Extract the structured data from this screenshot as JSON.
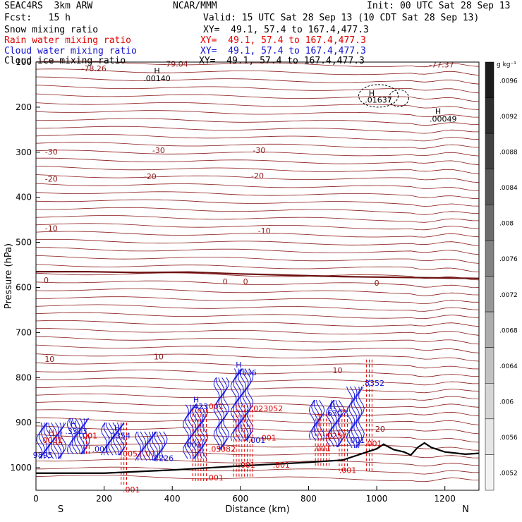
{
  "header": {
    "model": "SEAC4RS  3km ARW",
    "org": "NCAR/MMM",
    "init": "Init: 00 UTC Sat 28 Sep 13",
    "fcst": "Fcst:   15 h",
    "valid": "Valid: 15 UTC Sat 28 Sep 13 (10 CDT Sat 28 Sep 13)"
  },
  "fields": [
    {
      "name": "Snow mixing ratio",
      "xy": "XY=  49.1, 57.4 to 167.4,477.3",
      "color": "#000000"
    },
    {
      "name": "Rain water mixing ratio",
      "xy": "XY=  49.1, 57.4 to 167.4,477.3",
      "color": "#e00000"
    },
    {
      "name": "Cloud water mixing ratio",
      "xy": "XY=  49.1, 57.4 to 167.4,477.3",
      "color": "#1010d0"
    },
    {
      "name": "Cloud ice mixing ratio",
      "xy": "XY=  49.1, 57.4 to 167.4,477.3",
      "color": "#000000"
    }
  ],
  "chart_data": {
    "type": "contour",
    "xlabel": "Distance (km)",
    "ylabel": "Pressure (hPa)",
    "xlim": [
      0,
      1300
    ],
    "ylim": [
      1050,
      100
    ],
    "x_ticks": [
      0,
      200,
      400,
      600,
      800,
      1000,
      1200
    ],
    "y_ticks": [
      100,
      200,
      300,
      400,
      500,
      600,
      700,
      800,
      900,
      1000
    ],
    "y_tick_labels": [
      "100",
      "200",
      "300",
      "400",
      "500",
      "600",
      "700",
      "800",
      "900",
      "1000"
    ],
    "x_end_labels": {
      "left": "S",
      "right": "N"
    },
    "colorbar": {
      "unit": "g kg⁻¹",
      "levels": [
        ".0096",
        ".0092",
        ".0088",
        ".0084",
        ".008",
        ".0076",
        ".0072",
        ".0068",
        ".0064",
        ".006",
        ".0056",
        ".0052"
      ],
      "colors": [
        "#1c1c1c",
        "#2e2e2e",
        "#424242",
        "#575757",
        "#6c6c6c",
        "#828282",
        "#979797",
        "#acacac",
        "#c1c1c1",
        "#d5d5d5",
        "#e6e6e6",
        "#f3f3f3"
      ]
    },
    "temperature_contours": {
      "color": "#8b1a1a",
      "zero_line_p": [
        565,
        565,
        567,
        566,
        570,
        573,
        576,
        578,
        580
      ],
      "zero_line_x": [
        0,
        150,
        300,
        450,
        600,
        750,
        900,
        1100,
        1300
      ],
      "labels": [
        {
          "x": 170,
          "p": 120,
          "text": "-78.26"
        },
        {
          "x": 410,
          "p": 110,
          "text": "-79.04"
        },
        {
          "x": 1190,
          "p": 112,
          "text": "-77.37"
        },
        {
          "x": 45,
          "p": 305,
          "text": "-30"
        },
        {
          "x": 360,
          "p": 302,
          "text": "-30"
        },
        {
          "x": 655,
          "p": 302,
          "text": "-30"
        },
        {
          "x": 45,
          "p": 365,
          "text": "-20"
        },
        {
          "x": 335,
          "p": 360,
          "text": "-20"
        },
        {
          "x": 650,
          "p": 358,
          "text": "-20"
        },
        {
          "x": 45,
          "p": 475,
          "text": "-10"
        },
        {
          "x": 670,
          "p": 480,
          "text": "-10"
        },
        {
          "x": 30,
          "p": 590,
          "text": "0"
        },
        {
          "x": 555,
          "p": 593,
          "text": "0"
        },
        {
          "x": 615,
          "p": 593,
          "text": "0"
        },
        {
          "x": 1000,
          "p": 596,
          "text": "0"
        },
        {
          "x": 40,
          "p": 765,
          "text": "10"
        },
        {
          "x": 360,
          "p": 760,
          "text": "10"
        },
        {
          "x": 885,
          "p": 790,
          "text": "10"
        },
        {
          "x": 1010,
          "p": 920,
          "text": "20"
        }
      ]
    },
    "extrema_labels": [
      {
        "x": 355,
        "p": 125,
        "text": "H",
        "color": "#000000"
      },
      {
        "x": 355,
        "p": 142,
        "text": ".00140",
        "color": "#000000"
      },
      {
        "x": 985,
        "p": 175,
        "text": "H",
        "color": "#000000"
      },
      {
        "x": 1005,
        "p": 190,
        "text": ".01637",
        "color": "#000000"
      },
      {
        "x": 1180,
        "p": 215,
        "text": "H",
        "color": "#000000"
      },
      {
        "x": 1195,
        "p": 232,
        "text": ".00049",
        "color": "#000000"
      },
      {
        "x": 45,
        "p": 928,
        "text": "H",
        "color": "#e00000"
      },
      {
        "x": 45,
        "p": 945,
        "text": ".0001",
        "color": "#e00000"
      },
      {
        "x": 155,
        "p": 935,
        "text": ".001",
        "color": "#e00000"
      },
      {
        "x": 280,
        "p": 975,
        "text": ".0051",
        "color": "#e00000"
      },
      {
        "x": 333,
        "p": 975,
        "text": ".01",
        "color": "#e00000"
      },
      {
        "x": 280,
        "p": 1055,
        "text": ".001",
        "color": "#e00000"
      },
      {
        "x": 525,
        "p": 870,
        "text": ".001",
        "color": "#e00000"
      },
      {
        "x": 525,
        "p": 965,
        "text": ".05",
        "color": "#e00000"
      },
      {
        "x": 557,
        "p": 965,
        "text": "3082",
        "color": "#e00000"
      },
      {
        "x": 525,
        "p": 1028,
        "text": ".001",
        "color": "#e00000"
      },
      {
        "x": 678,
        "p": 875,
        "text": ".023052",
        "color": "#e00000"
      },
      {
        "x": 680,
        "p": 940,
        "text": ".001",
        "color": "#e00000"
      },
      {
        "x": 720,
        "p": 1000,
        "text": ".001",
        "color": "#e00000"
      },
      {
        "x": 618,
        "p": 1000,
        "text": ".001",
        "color": "#e00000"
      },
      {
        "x": 840,
        "p": 963,
        "text": ".001",
        "color": "#e00000"
      },
      {
        "x": 915,
        "p": 1012,
        "text": ".001",
        "color": "#e00000"
      },
      {
        "x": 880,
        "p": 935,
        "text": ".0257",
        "color": "#e00000"
      },
      {
        "x": 990,
        "p": 952,
        "text": ".001",
        "color": "#e00000"
      },
      {
        "x": 110,
        "p": 908,
        "text": "H",
        "color": "#1010d0"
      },
      {
        "x": 118,
        "p": 925,
        "text": ".3313",
        "color": "#1010d0"
      },
      {
        "x": 238,
        "p": 918,
        "text": "H",
        "color": "#1010d0"
      },
      {
        "x": 245,
        "p": 935,
        "text": ".2354",
        "color": "#1010d0"
      },
      {
        "x": 20,
        "p": 978,
        "text": "9895",
        "color": "#1010d0"
      },
      {
        "x": 190,
        "p": 965,
        "text": ".001",
        "color": "#1010d0"
      },
      {
        "x": 375,
        "p": 985,
        "text": "2226",
        "color": "#1010d0"
      },
      {
        "x": 460,
        "p": 955,
        "text": ".001",
        "color": "#1010d0"
      },
      {
        "x": 470,
        "p": 855,
        "text": "H",
        "color": "#1010d0"
      },
      {
        "x": 480,
        "p": 870,
        "text": ".423",
        "color": "#1010d0"
      },
      {
        "x": 595,
        "p": 778,
        "text": "H",
        "color": "#1010d0"
      },
      {
        "x": 615,
        "p": 795,
        "text": ".4536",
        "color": "#1010d0"
      },
      {
        "x": 648,
        "p": 945,
        "text": ".001",
        "color": "#1010d0"
      },
      {
        "x": 870,
        "p": 870,
        "text": "H",
        "color": "#1010d0"
      },
      {
        "x": 880,
        "p": 885,
        "text": ".6307",
        "color": "#1010d0"
      },
      {
        "x": 990,
        "p": 818,
        "text": ".8352",
        "color": "#1010d0"
      },
      {
        "x": 940,
        "p": 945,
        "text": ".001",
        "color": "#1010d0"
      }
    ]
  }
}
